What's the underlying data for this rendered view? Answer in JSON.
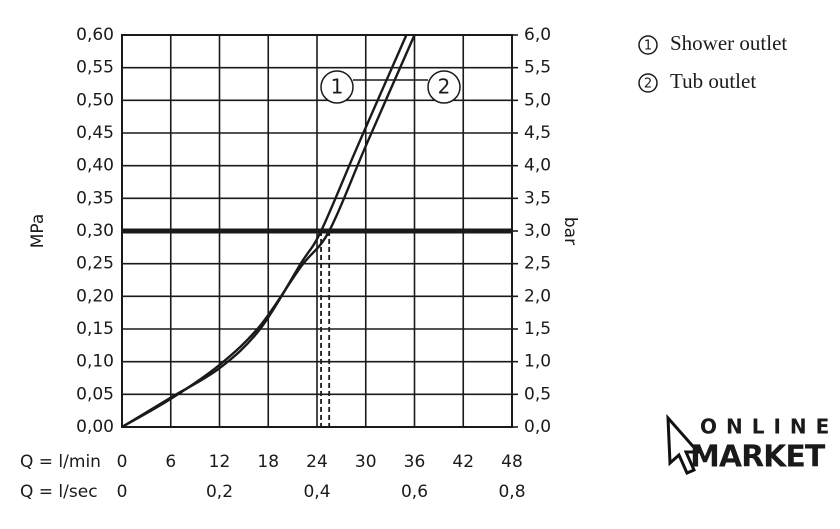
{
  "chart_data": {
    "type": "line",
    "y_label": "MPa",
    "y2_label": "bar",
    "x_label": "Q = l/min",
    "x2_label": "Q = l/sec",
    "xlim": [
      0,
      48
    ],
    "xticks": [
      0,
      6,
      12,
      18,
      24,
      30,
      36,
      42,
      48
    ],
    "x2lim": [
      0,
      0.8
    ],
    "x2ticks": [
      0,
      {
        "value": 0.2,
        "label": "0,2"
      },
      {
        "value": 0.4,
        "label": "0,4"
      },
      {
        "value": 0.6,
        "label": "0,6"
      },
      {
        "value": 0.8,
        "label": "0,8"
      }
    ],
    "ylim": [
      0,
      0.6
    ],
    "yticks": [
      {
        "value": 0,
        "label": "0,00"
      },
      {
        "value": 0.05,
        "label": "0,05"
      },
      {
        "value": 0.1,
        "label": "0,10"
      },
      {
        "value": 0.15,
        "label": "0,15"
      },
      {
        "value": 0.2,
        "label": "0,20"
      },
      {
        "value": 0.25,
        "label": "0,25"
      },
      {
        "value": 0.3,
        "label": "0,30"
      },
      {
        "value": 0.35,
        "label": "0,35"
      },
      {
        "value": 0.4,
        "label": "0,40"
      },
      {
        "value": 0.45,
        "label": "0,45"
      },
      {
        "value": 0.5,
        "label": "0,50"
      },
      {
        "value": 0.55,
        "label": "0,55"
      },
      {
        "value": 0.6,
        "label": "0,60"
      }
    ],
    "y2lim": [
      0,
      6
    ],
    "y2ticks": [
      {
        "value": 0,
        "label": "0,0"
      },
      {
        "value": 0.5,
        "label": "0,5"
      },
      {
        "value": 1,
        "label": "1,0"
      },
      {
        "value": 1.5,
        "label": "1,5"
      },
      {
        "value": 2,
        "label": "2,0"
      },
      {
        "value": 2.5,
        "label": "2,5"
      },
      {
        "value": 3,
        "label": "3,0"
      },
      {
        "value": 3.5,
        "label": "3,5"
      },
      {
        "value": 4,
        "label": "4,0"
      },
      {
        "value": 4.5,
        "label": "4,5"
      },
      {
        "value": 5,
        "label": "5,0"
      },
      {
        "value": 5.5,
        "label": "5,5"
      },
      {
        "value": 6,
        "label": "6,0"
      }
    ],
    "grid": true,
    "reference_y": 0.3,
    "dashed_x": [
      24.5,
      25.5
    ],
    "series": [
      {
        "name": "Shower outlet",
        "marker": "1",
        "color": "#1a1a1a",
        "x": [
          0,
          6,
          12,
          17,
          22,
          24.5,
          29,
          35
        ],
        "values": [
          0,
          0.045,
          0.09,
          0.15,
          0.25,
          0.3,
          0.43,
          0.6
        ]
      },
      {
        "name": "Tub outlet",
        "marker": "2",
        "color": "#1a1a1a",
        "x": [
          0,
          6,
          12,
          17,
          22,
          25.5,
          30,
          36
        ],
        "values": [
          0,
          0.043,
          0.095,
          0.155,
          0.245,
          0.3,
          0.43,
          0.6
        ]
      }
    ]
  },
  "logo": {
    "line1": "ONLINE",
    "line2": "MARKET"
  }
}
